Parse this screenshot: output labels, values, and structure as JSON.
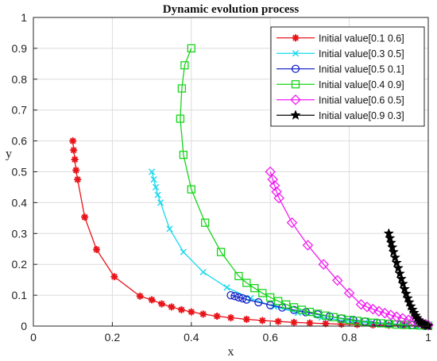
{
  "chart_data": {
    "type": "line",
    "title": "Dynamic evolution process",
    "xlabel": "x",
    "ylabel": "y",
    "xlim": [
      0,
      1
    ],
    "ylim": [
      0,
      1
    ],
    "xticks": [
      "0",
      "0.2",
      "0.4",
      "0.6",
      "0.8",
      "1"
    ],
    "yticks": [
      "0",
      "0.1",
      "0.2",
      "0.3",
      "0.4",
      "0.5",
      "0.6",
      "0.7",
      "0.8",
      "0.9",
      "1"
    ],
    "grid": true,
    "legend_position": "top-right",
    "series": [
      {
        "name": "Initial value[0.1 0.6]",
        "color": "#e8141a",
        "marker": "asterisk",
        "points": [
          [
            0.1,
            0.6
          ],
          [
            0.102,
            0.57
          ],
          [
            0.105,
            0.54
          ],
          [
            0.108,
            0.505
          ],
          [
            0.112,
            0.475
          ],
          [
            0.13,
            0.353
          ],
          [
            0.16,
            0.248
          ],
          [
            0.205,
            0.16
          ],
          [
            0.27,
            0.097
          ],
          [
            0.3,
            0.085
          ],
          [
            0.325,
            0.072
          ],
          [
            0.35,
            0.062
          ],
          [
            0.375,
            0.053
          ],
          [
            0.4,
            0.046
          ],
          [
            0.43,
            0.039
          ],
          [
            0.465,
            0.032
          ],
          [
            0.5,
            0.027
          ],
          [
            0.54,
            0.022
          ],
          [
            0.58,
            0.018
          ],
          [
            0.62,
            0.015
          ],
          [
            0.66,
            0.012
          ],
          [
            0.7,
            0.01
          ],
          [
            0.74,
            0.008
          ],
          [
            0.78,
            0.006
          ],
          [
            0.82,
            0.005
          ],
          [
            0.86,
            0.004
          ],
          [
            0.9,
            0.003
          ],
          [
            0.94,
            0.002
          ],
          [
            0.97,
            0.001
          ],
          [
            1.0,
            0.0
          ]
        ]
      },
      {
        "name": "Initial value[0.3 0.5]",
        "color": "#17d8ee",
        "marker": "x",
        "points": [
          [
            0.3,
            0.5
          ],
          [
            0.305,
            0.475
          ],
          [
            0.31,
            0.45
          ],
          [
            0.315,
            0.425
          ],
          [
            0.322,
            0.4
          ],
          [
            0.345,
            0.315
          ],
          [
            0.38,
            0.24
          ],
          [
            0.43,
            0.175
          ],
          [
            0.49,
            0.125
          ],
          [
            0.55,
            0.09
          ],
          [
            0.61,
            0.063
          ],
          [
            0.67,
            0.043
          ],
          [
            0.73,
            0.028
          ],
          [
            0.79,
            0.017
          ],
          [
            0.85,
            0.01
          ],
          [
            0.9,
            0.006
          ],
          [
            0.94,
            0.003
          ],
          [
            0.97,
            0.001
          ],
          [
            1.0,
            0.0
          ]
        ]
      },
      {
        "name": "Initial value[0.5 0.1]",
        "color": "#1724c8",
        "marker": "circle",
        "points": [
          [
            0.5,
            0.1
          ],
          [
            0.51,
            0.097
          ],
          [
            0.52,
            0.093
          ],
          [
            0.53,
            0.09
          ],
          [
            0.54,
            0.086
          ],
          [
            0.57,
            0.077
          ],
          [
            0.6,
            0.068
          ],
          [
            0.63,
            0.06
          ],
          [
            0.66,
            0.052
          ],
          [
            0.69,
            0.045
          ],
          [
            0.72,
            0.038
          ],
          [
            0.75,
            0.031
          ],
          [
            0.78,
            0.025
          ],
          [
            0.81,
            0.02
          ],
          [
            0.84,
            0.015
          ],
          [
            0.87,
            0.011
          ],
          [
            0.9,
            0.008
          ],
          [
            0.93,
            0.005
          ],
          [
            0.96,
            0.003
          ],
          [
            0.99,
            0.001
          ]
        ]
      },
      {
        "name": "Initial value[0.4 0.9]",
        "color": "#17d41a",
        "marker": "square",
        "points": [
          [
            0.4,
            0.9
          ],
          [
            0.383,
            0.845
          ],
          [
            0.376,
            0.77
          ],
          [
            0.372,
            0.672
          ],
          [
            0.38,
            0.555
          ],
          [
            0.4,
            0.443
          ],
          [
            0.435,
            0.335
          ],
          [
            0.475,
            0.24
          ],
          [
            0.52,
            0.162
          ],
          [
            0.54,
            0.14
          ],
          [
            0.56,
            0.123
          ],
          [
            0.58,
            0.107
          ],
          [
            0.6,
            0.093
          ],
          [
            0.62,
            0.081
          ],
          [
            0.64,
            0.07
          ],
          [
            0.66,
            0.061
          ],
          [
            0.68,
            0.053
          ],
          [
            0.7,
            0.046
          ],
          [
            0.72,
            0.04
          ],
          [
            0.74,
            0.034
          ],
          [
            0.76,
            0.029
          ],
          [
            0.78,
            0.024
          ],
          [
            0.8,
            0.02
          ],
          [
            0.82,
            0.017
          ],
          [
            0.84,
            0.014
          ],
          [
            0.86,
            0.011
          ],
          [
            0.88,
            0.009
          ],
          [
            0.9,
            0.007
          ],
          [
            0.92,
            0.005
          ],
          [
            0.94,
            0.004
          ],
          [
            0.96,
            0.003
          ],
          [
            0.98,
            0.002
          ],
          [
            1.0,
            0.001
          ]
        ]
      },
      {
        "name": "Initial value[0.6 0.5]",
        "color": "#f01ef0",
        "marker": "diamond",
        "points": [
          [
            0.6,
            0.5
          ],
          [
            0.606,
            0.475
          ],
          [
            0.611,
            0.455
          ],
          [
            0.616,
            0.435
          ],
          [
            0.622,
            0.415
          ],
          [
            0.655,
            0.335
          ],
          [
            0.695,
            0.262
          ],
          [
            0.735,
            0.2
          ],
          [
            0.77,
            0.148
          ],
          [
            0.8,
            0.107
          ],
          [
            0.83,
            0.07
          ],
          [
            0.845,
            0.062
          ],
          [
            0.86,
            0.055
          ],
          [
            0.875,
            0.048
          ],
          [
            0.89,
            0.042
          ],
          [
            0.905,
            0.036
          ],
          [
            0.92,
            0.03
          ],
          [
            0.935,
            0.025
          ],
          [
            0.95,
            0.02
          ],
          [
            0.962,
            0.016
          ],
          [
            0.974,
            0.012
          ],
          [
            0.985,
            0.009
          ],
          [
            0.993,
            0.006
          ],
          [
            1.0,
            0.003
          ]
        ]
      },
      {
        "name": "Initial value[0.9 0.3]",
        "color": "#000000",
        "marker": "star",
        "points": [
          [
            0.9,
            0.3
          ],
          [
            0.903,
            0.285
          ],
          [
            0.906,
            0.27
          ],
          [
            0.909,
            0.255
          ],
          [
            0.912,
            0.24
          ],
          [
            0.916,
            0.222
          ],
          [
            0.92,
            0.205
          ],
          [
            0.924,
            0.188
          ],
          [
            0.928,
            0.17
          ],
          [
            0.932,
            0.153
          ],
          [
            0.936,
            0.137
          ],
          [
            0.94,
            0.12
          ],
          [
            0.944,
            0.105
          ],
          [
            0.948,
            0.09
          ],
          [
            0.952,
            0.077
          ],
          [
            0.956,
            0.064
          ],
          [
            0.96,
            0.053
          ],
          [
            0.964,
            0.043
          ],
          [
            0.968,
            0.034
          ],
          [
            0.972,
            0.026
          ],
          [
            0.976,
            0.019
          ],
          [
            0.98,
            0.013
          ],
          [
            0.984,
            0.009
          ],
          [
            0.988,
            0.006
          ],
          [
            0.992,
            0.004
          ],
          [
            0.996,
            0.002
          ],
          [
            1.0,
            0.001
          ]
        ]
      }
    ]
  }
}
